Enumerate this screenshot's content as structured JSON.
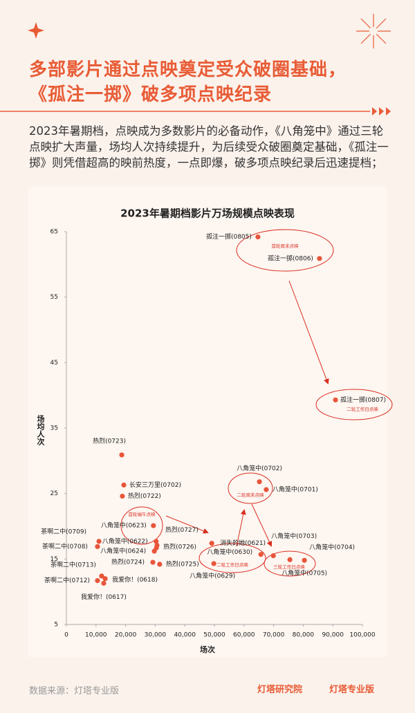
{
  "header": {
    "title_line1": "多部影片通过点映奠定受众破圈基础，",
    "title_line2": "《孤注一掷》破多项点映纪录"
  },
  "paragraph": "2023年暑期档，点映成为多数影片的必备动作，《八角笼中》通过三轮点映扩大声量，场均人次持续提升，为后续受众破圈奠定基础，《孤注一掷》则凭借超高的映前热度，一点即爆，破多项点映纪录后迅速提档；",
  "chart_data": {
    "type": "scatter",
    "title": "2023年暑期档影片万场规模点映表现",
    "xlabel": "场次",
    "ylabel": "场均人次",
    "xlim": [
      0,
      100000
    ],
    "ylim": [
      5,
      65
    ],
    "xticks": [
      0,
      {
        "value": 10000,
        "label": "10,000"
      },
      {
        "value": 20000,
        "label": "20,000"
      },
      {
        "value": 30000,
        "label": "30,000"
      },
      {
        "value": 40000,
        "label": "40,000"
      },
      {
        "value": 50000,
        "label": "50,000"
      },
      {
        "value": 60000,
        "label": "60,000"
      },
      {
        "value": 70000,
        "label": "70,000"
      },
      {
        "value": 80000,
        "label": "80,000"
      },
      {
        "value": 90000,
        "label": "90,000"
      },
      {
        "value": 100000,
        "label": "100,000"
      }
    ],
    "yticks": [
      5,
      15,
      25,
      35,
      45,
      55,
      65
    ],
    "series": [
      {
        "color": "#e8553a",
        "labels": [
          "孤注一掷(0805)",
          "孤注一掷(0806)",
          "孤注一掷(0807)",
          "热烈(0723)",
          "长安三万里(0702)",
          "热烈(0722)",
          "八角笼中(0702)",
          "八角笼中(0701)",
          "八角笼中(0623)",
          "热烈(0727)",
          "茶啊二中(0709)",
          "八角笼中(0622)",
          "茶啊二中(0708)",
          "八角笼中(0624)",
          "热烈(0726)",
          "热烈(0724)",
          "热烈(0725)",
          "茶啊二中(0713)",
          "茶啊二中(0712)",
          "我爱你！(0618)",
          "我爱你！(0617)",
          "消失的她(0621)",
          "八角笼中(0630)",
          "八角笼中(0629)",
          "八角笼中(0703)",
          "八角笼中(0704)",
          "八角笼中(0705)"
        ],
        "x": [
          64700,
          85500,
          90900,
          18700,
          19400,
          18900,
          65200,
          67500,
          29400,
          30600,
          11000,
          30300,
          10500,
          29700,
          30400,
          29200,
          31500,
          11900,
          10500,
          13100,
          12600,
          49100,
          65700,
          49800,
          69900,
          75500,
          80400
        ],
        "values": [
          64.2,
          60.9,
          39.3,
          30.9,
          26.3,
          24.6,
          26.8,
          25.6,
          20.1,
          17.1,
          17.7,
          17.7,
          16.9,
          16.2,
          16.7,
          14.5,
          14.2,
          12.4,
          11.7,
          12.0,
          11.3,
          17.4,
          15.7,
          14.3,
          15.5,
          14.9,
          14.8
        ]
      }
    ],
    "annotations": [
      "首轮周末点映",
      "二轮工作日点映",
      "二轮周末点映",
      "首轮端午点映",
      "二轮工作日点映",
      "三轮工作日点映"
    ]
  },
  "footer": {
    "source": "数据来源：灯塔专业版",
    "logo1": "灯塔研究院",
    "logo2": "灯塔专业版"
  }
}
